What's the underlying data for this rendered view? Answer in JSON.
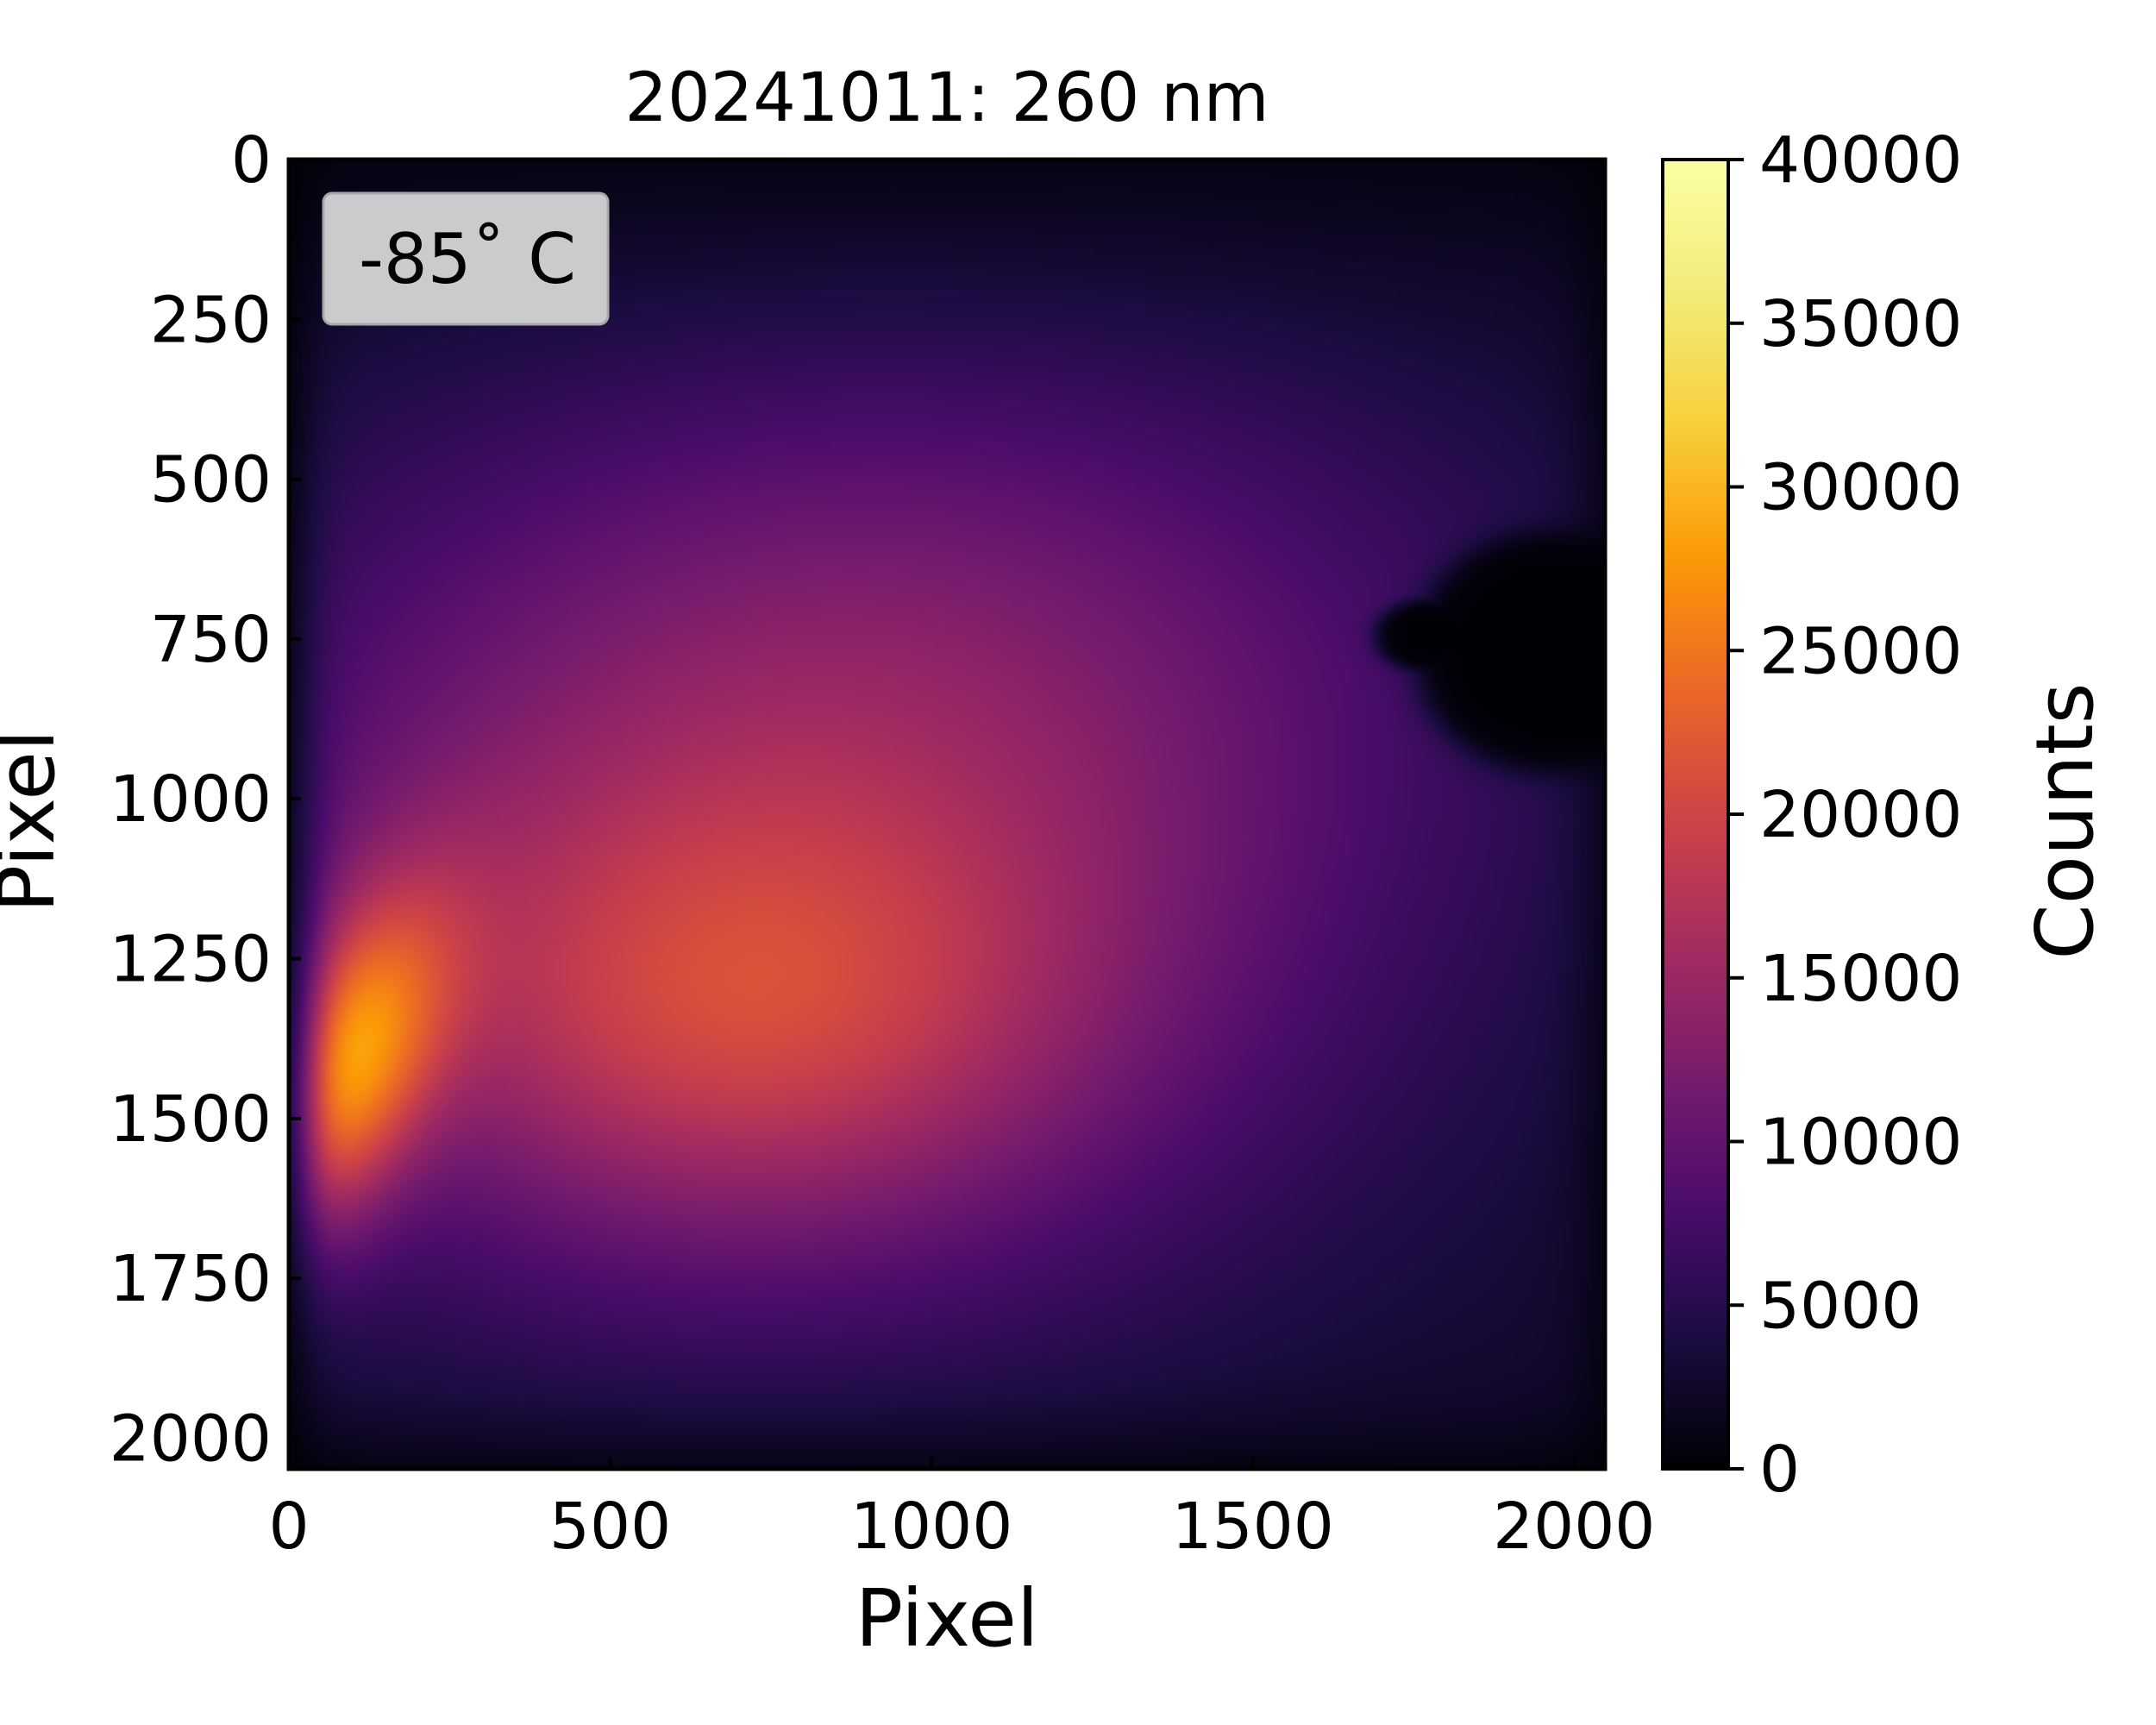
{
  "chart_data": {
    "type": "heatmap",
    "title": "20241011: 260 nm",
    "xlabel": "Pixel",
    "ylabel": "Pixel",
    "xlim": [
      0,
      2048
    ],
    "ylim": [
      2048,
      0
    ],
    "x_ticks": [
      0,
      500,
      1000,
      1500,
      2000
    ],
    "y_ticks": [
      0,
      250,
      500,
      750,
      1000,
      1250,
      1500,
      1750,
      2000
    ],
    "colormap": "inferno",
    "colorbar": {
      "label": "Counts",
      "min": 0,
      "max": 40000,
      "ticks": [
        0,
        5000,
        10000,
        15000,
        20000,
        25000,
        30000,
        35000,
        40000
      ]
    },
    "annotation": "-85˚ C",
    "features": {
      "bright_region": "lower-left edge, approx. x 0-400, y 1300-2000, ~30000 counts",
      "dark_spot": "right edge, approx. x 1700-2048, y 600-950, ~0 counts",
      "background": "~5000-15000 counts, decreasing toward the edges"
    },
    "grid": false
  }
}
